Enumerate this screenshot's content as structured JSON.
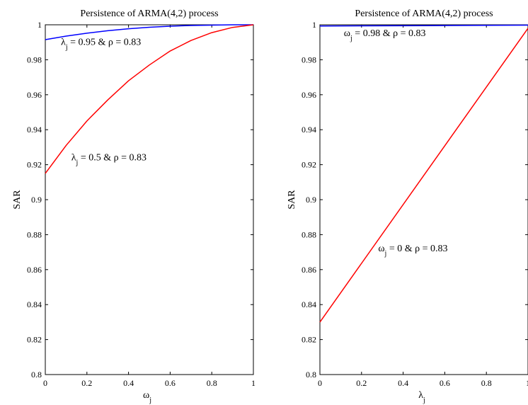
{
  "chart_data": [
    {
      "type": "line",
      "title": "Persistence of ARMA(4,2) process",
      "xlabel": "ω",
      "xlabel_sub": "j",
      "ylabel": "SAR",
      "xlim": [
        0,
        1
      ],
      "ylim": [
        0.8,
        1
      ],
      "xticks": [
        0,
        0.2,
        0.4,
        0.6,
        0.8,
        1
      ],
      "xtick_labels": [
        "0",
        "0.2",
        "0.4",
        "0.6",
        "0.8",
        "1"
      ],
      "yticks": [
        0.8,
        0.82,
        0.84,
        0.86,
        0.88,
        0.9,
        0.92,
        0.94,
        0.96,
        0.98,
        1
      ],
      "ytick_labels": [
        "0.8",
        "0.82",
        "0.84",
        "0.86",
        "0.88",
        "0.9",
        "0.92",
        "0.94",
        "0.96",
        "0.98",
        "1"
      ],
      "grid": false,
      "series": [
        {
          "color": "#0000ff",
          "x": [
            0,
            0.1,
            0.2,
            0.3,
            0.4,
            0.5,
            0.6,
            0.7,
            0.8,
            0.9,
            1
          ],
          "y": [
            0.9915,
            0.9935,
            0.9952,
            0.9966,
            0.9977,
            0.9986,
            0.9992,
            0.9996,
            0.9998,
            1.0,
            1.0
          ]
        },
        {
          "color": "#ff0000",
          "x": [
            0,
            0.1,
            0.2,
            0.3,
            0.4,
            0.5,
            0.6,
            0.7,
            0.8,
            0.9,
            1
          ],
          "y": [
            0.915,
            0.931,
            0.945,
            0.957,
            0.968,
            0.977,
            0.985,
            0.991,
            0.9955,
            0.9985,
            1.0
          ]
        }
      ],
      "annotations": [
        {
          "main": "λ",
          "sub": "j",
          "rest": " = 0.95 & ρ = 0.83",
          "x": 0.075,
          "y": 0.9885
        },
        {
          "main": "λ",
          "sub": "j",
          "rest": " = 0.5 & ρ = 0.83",
          "x": 0.125,
          "y": 0.9225
        }
      ]
    },
    {
      "type": "line",
      "title": "Persistence of ARMA(4,2) process",
      "xlabel": "λ",
      "xlabel_sub": "j",
      "ylabel": "SAR",
      "xlim": [
        0,
        1
      ],
      "ylim": [
        0.8,
        1
      ],
      "xticks": [
        0,
        0.2,
        0.4,
        0.6,
        0.8,
        1
      ],
      "xtick_labels": [
        "0",
        "0.2",
        "0.4",
        "0.6",
        "0.8",
        "1"
      ],
      "yticks": [
        0.8,
        0.82,
        0.84,
        0.86,
        0.88,
        0.9,
        0.92,
        0.94,
        0.96,
        0.98,
        1
      ],
      "ytick_labels": [
        "0.8",
        "0.82",
        "0.84",
        "0.86",
        "0.88",
        "0.9",
        "0.92",
        "0.94",
        "0.96",
        "0.98",
        "1"
      ],
      "grid": false,
      "series": [
        {
          "color": "#0000ff",
          "x": [
            0,
            0.5,
            1
          ],
          "y": [
            0.9993,
            0.9995,
            0.9998
          ]
        },
        {
          "color": "#ff0000",
          "x": [
            0,
            1
          ],
          "y": [
            0.83,
            0.998
          ]
        }
      ],
      "annotations": [
        {
          "main": "ω",
          "sub": "j",
          "rest": " = 0.98 & ρ = 0.83",
          "x": 0.115,
          "y": 0.9935
        },
        {
          "main": "ω",
          "sub": "j",
          "rest": " = 0 & ρ = 0.83",
          "x": 0.28,
          "y": 0.8705
        }
      ]
    }
  ]
}
